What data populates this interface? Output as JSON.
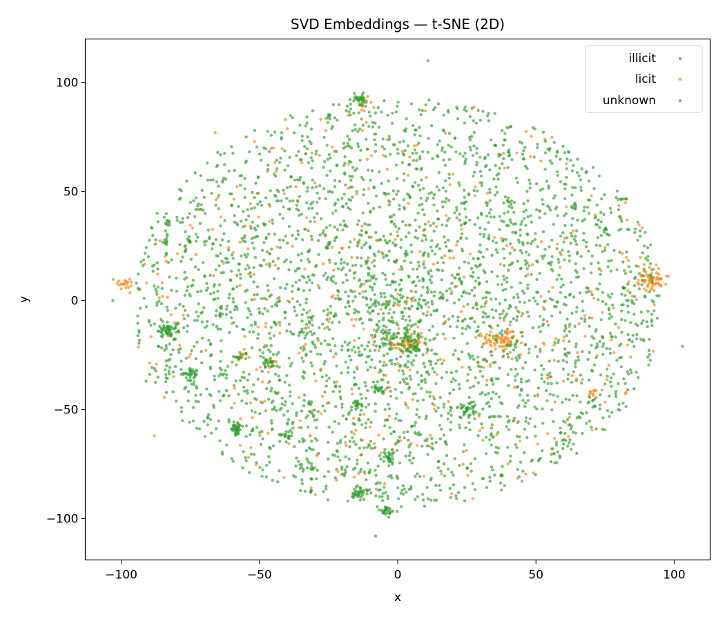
{
  "chart_data": {
    "type": "scatter",
    "title": "SVD Embeddings — t-SNE (2D)",
    "xlabel": "x",
    "ylabel": "y",
    "xlim": [
      -113,
      113
    ],
    "ylim": [
      -119,
      120
    ],
    "xticks": [
      -100,
      -50,
      0,
      50,
      100
    ],
    "yticks": [
      -100,
      -50,
      0,
      50,
      100
    ],
    "xtick_labels": [
      "−100",
      "−50",
      "0",
      "50",
      "100"
    ],
    "ytick_labels": [
      "−100",
      "−50",
      "0",
      "50",
      "100"
    ],
    "grid": false,
    "legend_position": "top-right",
    "series": [
      {
        "name": "illicit",
        "color": "#1f77b4",
        "points": [
          [
            -14,
            92
          ],
          [
            37,
            -15
          ],
          [
            4,
            -19
          ],
          [
            92,
            10
          ],
          [
            -83,
            -13
          ],
          [
            -58,
            -59
          ],
          [
            -14,
            -88
          ],
          [
            25,
            -50
          ],
          [
            -4,
            -96
          ]
        ]
      },
      {
        "name": "licit",
        "color": "#ff7f0e",
        "clusters": [
          {
            "center": [
              92,
              10
            ],
            "spread": 2.6,
            "count": 60
          },
          {
            "center": [
              37,
              -18
            ],
            "spread": 3.2,
            "count": 70
          },
          {
            "center": [
              4,
              -19
            ],
            "spread": 3.0,
            "count": 50
          },
          {
            "center": [
              -99,
              7
            ],
            "spread": 1.5,
            "count": 20
          },
          {
            "center": [
              -57,
              -26
            ],
            "spread": 1.2,
            "count": 8
          },
          {
            "center": [
              71,
              -43
            ],
            "spread": 1.2,
            "count": 10
          },
          {
            "center": [
              -47,
              -28
            ],
            "spread": 1.6,
            "count": 10
          },
          {
            "center": [
              -14,
              91
            ],
            "spread": 1.8,
            "count": 10
          }
        ],
        "points": [
          [
            -88,
            -62
          ],
          [
            -66,
            77
          ],
          [
            -85,
            2
          ],
          [
            10,
            87
          ],
          [
            -31,
            -82
          ],
          [
            83,
            37
          ],
          [
            -54,
            -72
          ],
          [
            60,
            -37
          ],
          [
            42,
            -55
          ],
          [
            55,
            -35
          ],
          [
            -3,
            -53
          ],
          [
            -16,
            -54
          ],
          [
            -81,
            -35
          ],
          [
            -45,
            70
          ],
          [
            -26,
            78
          ],
          [
            20,
            58
          ],
          [
            48,
            66
          ],
          [
            61,
            43
          ],
          [
            35,
            29
          ],
          [
            -63,
            17
          ],
          [
            -20,
            24
          ],
          [
            27,
            -8
          ],
          [
            -31,
            -9
          ],
          [
            -10,
            -58
          ],
          [
            52,
            27
          ],
          [
            -52,
            12
          ],
          [
            -41,
            49
          ],
          [
            6,
            71
          ],
          [
            14,
            34
          ],
          [
            70,
            4
          ]
        ],
        "scatter_count": 450,
        "scatter_seed": 7
      },
      {
        "name": "unknown",
        "color": "#2ca02c",
        "clusters": [
          {
            "center": [
              -14,
              92
            ],
            "spread": 1.8,
            "count": 30
          },
          {
            "center": [
              -83,
              -13
            ],
            "spread": 1.8,
            "count": 45
          },
          {
            "center": [
              -75,
              -34
            ],
            "spread": 1.5,
            "count": 30
          },
          {
            "center": [
              -58,
              -59
            ],
            "spread": 1.4,
            "count": 30
          },
          {
            "center": [
              -14,
              -88
            ],
            "spread": 1.8,
            "count": 35
          },
          {
            "center": [
              -4,
              -96
            ],
            "spread": 1.4,
            "count": 25
          },
          {
            "center": [
              -4,
              -73
            ],
            "spread": 1.3,
            "count": 22
          },
          {
            "center": [
              25,
              -50
            ],
            "spread": 1.8,
            "count": 30
          },
          {
            "center": [
              -15,
              -48
            ],
            "spread": 1.5,
            "count": 22
          },
          {
            "center": [
              -6,
              -41
            ],
            "spread": 1.3,
            "count": 15
          },
          {
            "center": [
              -40,
              -62
            ],
            "spread": 1.0,
            "count": 12
          },
          {
            "center": [
              -47,
              -29
            ],
            "spread": 1.3,
            "count": 15
          },
          {
            "center": [
              4,
              -20
            ],
            "spread": 4.5,
            "count": 80
          },
          {
            "center": [
              -84,
              36
            ],
            "spread": 0.6,
            "count": 6
          },
          {
            "center": [
              -84,
              27
            ],
            "spread": 0.6,
            "count": 6
          },
          {
            "center": [
              -75,
              27
            ],
            "spread": 0.6,
            "count": 5
          },
          {
            "center": [
              75,
              32
            ],
            "spread": 0.8,
            "count": 8
          },
          {
            "center": [
              64,
              43
            ],
            "spread": 0.8,
            "count": 8
          },
          {
            "center": [
              -57,
              -26
            ],
            "spread": 1.0,
            "count": 8
          },
          {
            "center": [
              -25,
              85
            ],
            "spread": 0.5,
            "count": 5
          },
          {
            "center": [
              -31,
              -77
            ],
            "spread": 0.6,
            "count": 5
          }
        ],
        "points": [
          [
            11,
            110
          ],
          [
            -8,
            -108
          ],
          [
            103,
            -21
          ],
          [
            -103,
            0
          ],
          [
            -91,
            -37
          ],
          [
            -87,
            40
          ],
          [
            -18,
            -92
          ],
          [
            -3,
            74
          ],
          [
            22,
            12
          ],
          [
            -36,
            5
          ]
        ],
        "scatter_count": 3200,
        "scatter_seed": 13
      }
    ]
  }
}
